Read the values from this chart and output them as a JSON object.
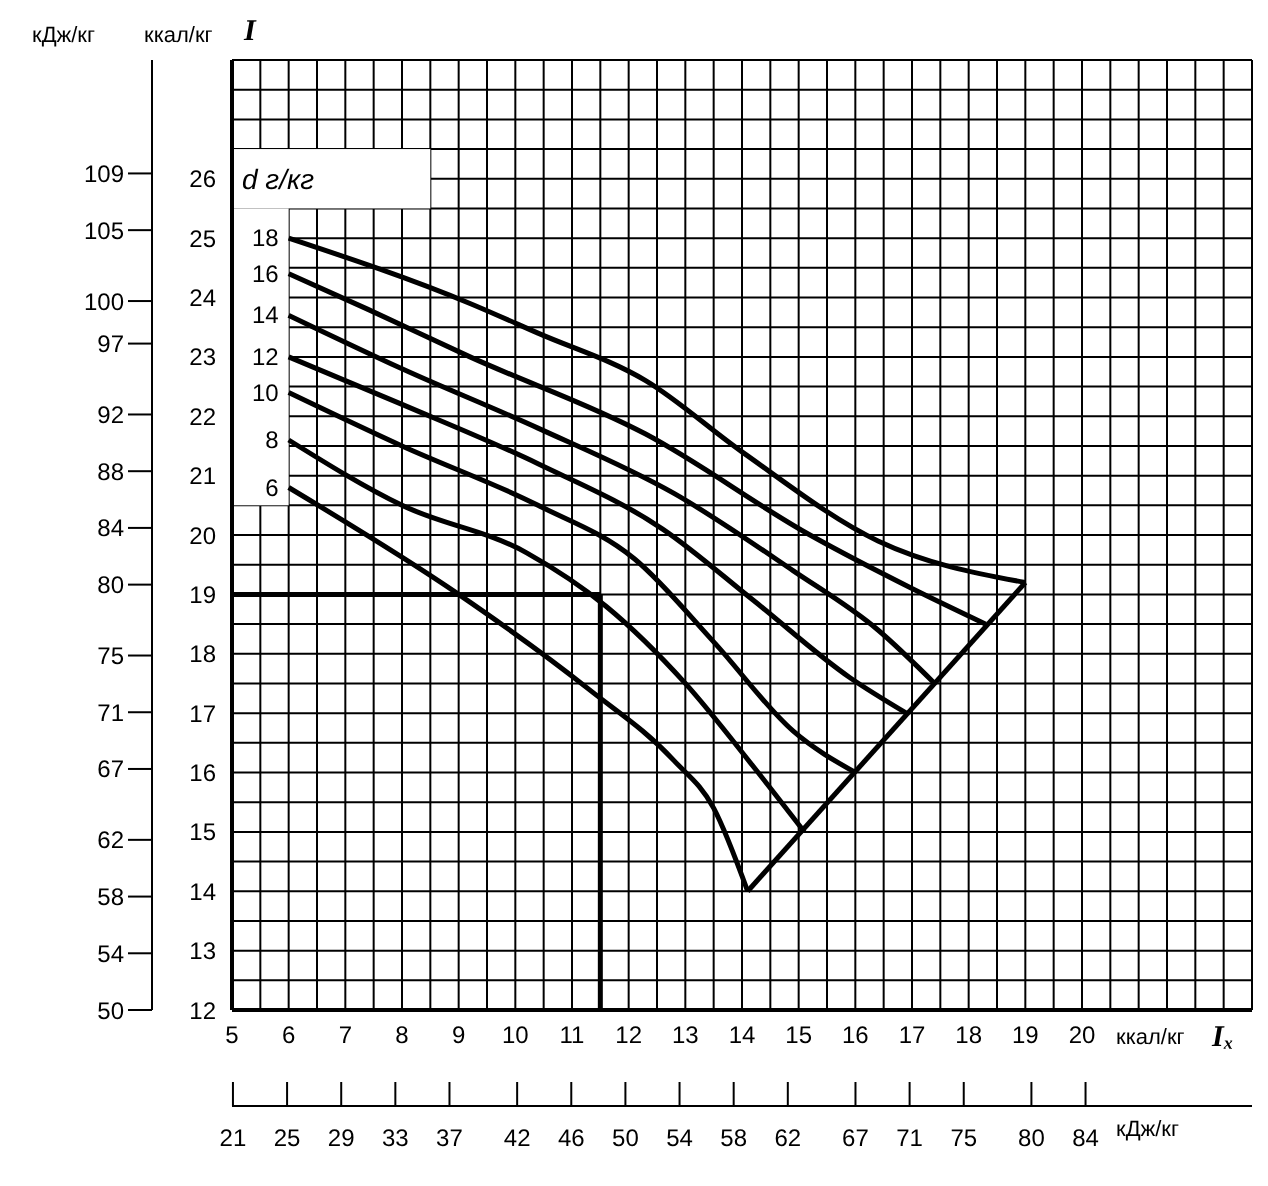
{
  "chart_data": {
    "type": "line",
    "ylabel": "I",
    "xlabel": "Iₓ",
    "legend_title": "d г/кг",
    "annotations": [
      "ккал/кг",
      "ккал/кг"
    ],
    "y2label": "кДж/кг",
    "x2label": "кДж/кг",
    "xlim": [
      5,
      23
    ],
    "ylim": [
      12,
      28
    ],
    "xticks": [
      5,
      {
        "value": 5.5,
        "label": null
      },
      6,
      {
        "value": 6.5,
        "label": null
      },
      7,
      {
        "value": 7.5,
        "label": null
      },
      8,
      {
        "value": 8.5,
        "label": null
      },
      9,
      {
        "value": 9.5,
        "label": null
      },
      10,
      {
        "value": 10.5,
        "label": null
      },
      11,
      {
        "value": 11.5,
        "label": null
      },
      12,
      {
        "value": 12.5,
        "label": null
      },
      13,
      {
        "value": 13.5,
        "label": null
      },
      14,
      {
        "value": 14.5,
        "label": null
      },
      15,
      {
        "value": 15.5,
        "label": null
      },
      16,
      {
        "value": 16.5,
        "label": null
      },
      17,
      {
        "value": 17.5,
        "label": null
      },
      18,
      {
        "value": 18.5,
        "label": null
      },
      19,
      {
        "value": 19.5,
        "label": null
      },
      20,
      {
        "value": 20.5,
        "label": null
      },
      {
        "value": 21,
        "label": null
      },
      {
        "value": 21.5,
        "label": null
      },
      {
        "value": 22,
        "label": null
      },
      {
        "value": 22.5,
        "label": null
      },
      {
        "value": 23,
        "label": null
      }
    ],
    "yticks": [
      12,
      {
        "value": 12.5,
        "label": null
      },
      13,
      {
        "value": 13.5,
        "label": null
      },
      14,
      {
        "value": 14.5,
        "label": null
      },
      15,
      {
        "value": 15.5,
        "label": null
      },
      16,
      {
        "value": 16.5,
        "label": null
      },
      17,
      {
        "value": 17.5,
        "label": null
      },
      18,
      {
        "value": 18.5,
        "label": null
      },
      19,
      {
        "value": 19.5,
        "label": null
      },
      20,
      {
        "value": 20.5,
        "label": null
      },
      21,
      {
        "value": 21.5,
        "label": null
      },
      22,
      {
        "value": 22.5,
        "label": null
      },
      23,
      {
        "value": 23.5,
        "label": null
      },
      24,
      {
        "value": 24.5,
        "label": null
      },
      25,
      {
        "value": 25.5,
        "label": null
      },
      26,
      {
        "value": 26.5,
        "label": null
      },
      {
        "value": 27,
        "label": null
      },
      {
        "value": 27.5,
        "label": null
      },
      {
        "value": 28,
        "label": null
      }
    ],
    "y2lim": [
      50,
      117
    ],
    "y2ticks": [
      50,
      54,
      58,
      62,
      67,
      71,
      75,
      80,
      84,
      88,
      92,
      97,
      100,
      105,
      109
    ],
    "x2lim": [
      20.93,
      96.3
    ],
    "x2ticks": [
      21,
      25,
      29,
      33,
      37,
      42,
      46,
      50,
      54,
      58,
      62,
      67,
      71,
      75,
      80,
      84
    ],
    "grid": true,
    "marker": "none",
    "line_style": "solid",
    "series": [
      {
        "name": "18",
        "color": "#000000",
        "x": [
          6,
          9.2,
          10.4,
          12.3,
          14,
          16.4,
          19
        ],
        "values": [
          25,
          23.9,
          23.4,
          22.6,
          21.4,
          19.9,
          19.2
        ]
      },
      {
        "name": "16",
        "color": "#000000",
        "x": [
          6,
          7.4,
          9.2,
          12.3,
          15.2,
          17,
          18.3
        ],
        "values": [
          24.4,
          23.8,
          23,
          21.7,
          20,
          19.1,
          18.5
        ]
      },
      {
        "name": "14",
        "color": "#000000",
        "x": [
          6,
          8,
          10.4,
          12.8,
          14.9,
          16.4,
          17.4
        ],
        "values": [
          23.7,
          22.8,
          21.8,
          20.7,
          19.4,
          18.4,
          17.5
        ]
      },
      {
        "name": "12",
        "color": "#000000",
        "x": [
          6,
          8,
          10.4,
          12.6,
          14.2,
          15.9,
          16.9
        ],
        "values": [
          23,
          22.2,
          21.2,
          20.1,
          18.9,
          17.6,
          17
        ]
      },
      {
        "name": "10",
        "color": "#000000",
        "x": [
          6,
          8,
          10.4,
          12.1,
          13.5,
          14.9,
          16
        ],
        "values": [
          22.4,
          21.5,
          20.5,
          19.6,
          18.2,
          16.7,
          16
        ]
      },
      {
        "name": "8",
        "color": "#000000",
        "x": [
          6,
          8,
          10.2,
          11.6,
          13,
          14.2,
          15.1
        ],
        "values": [
          21.6,
          20.5,
          19.7,
          18.8,
          17.5,
          16.1,
          15
        ]
      },
      {
        "name": "6",
        "color": "#000000",
        "x": [
          6,
          9,
          11.3,
          12.8,
          13.5,
          14.1
        ],
        "values": [
          20.8,
          19,
          17.4,
          16.2,
          15.4,
          14
        ]
      },
      {
        "color": "#000000",
        "x": [
          14.1,
          19
        ],
        "values": [
          14,
          19.2
        ]
      },
      {
        "color": "#000000",
        "x": [
          5,
          11.5
        ],
        "values": [
          19,
          19
        ]
      },
      {
        "color": "#000000",
        "x": [
          11.5,
          11.5
        ],
        "values": [
          19,
          12
        ]
      }
    ]
  }
}
